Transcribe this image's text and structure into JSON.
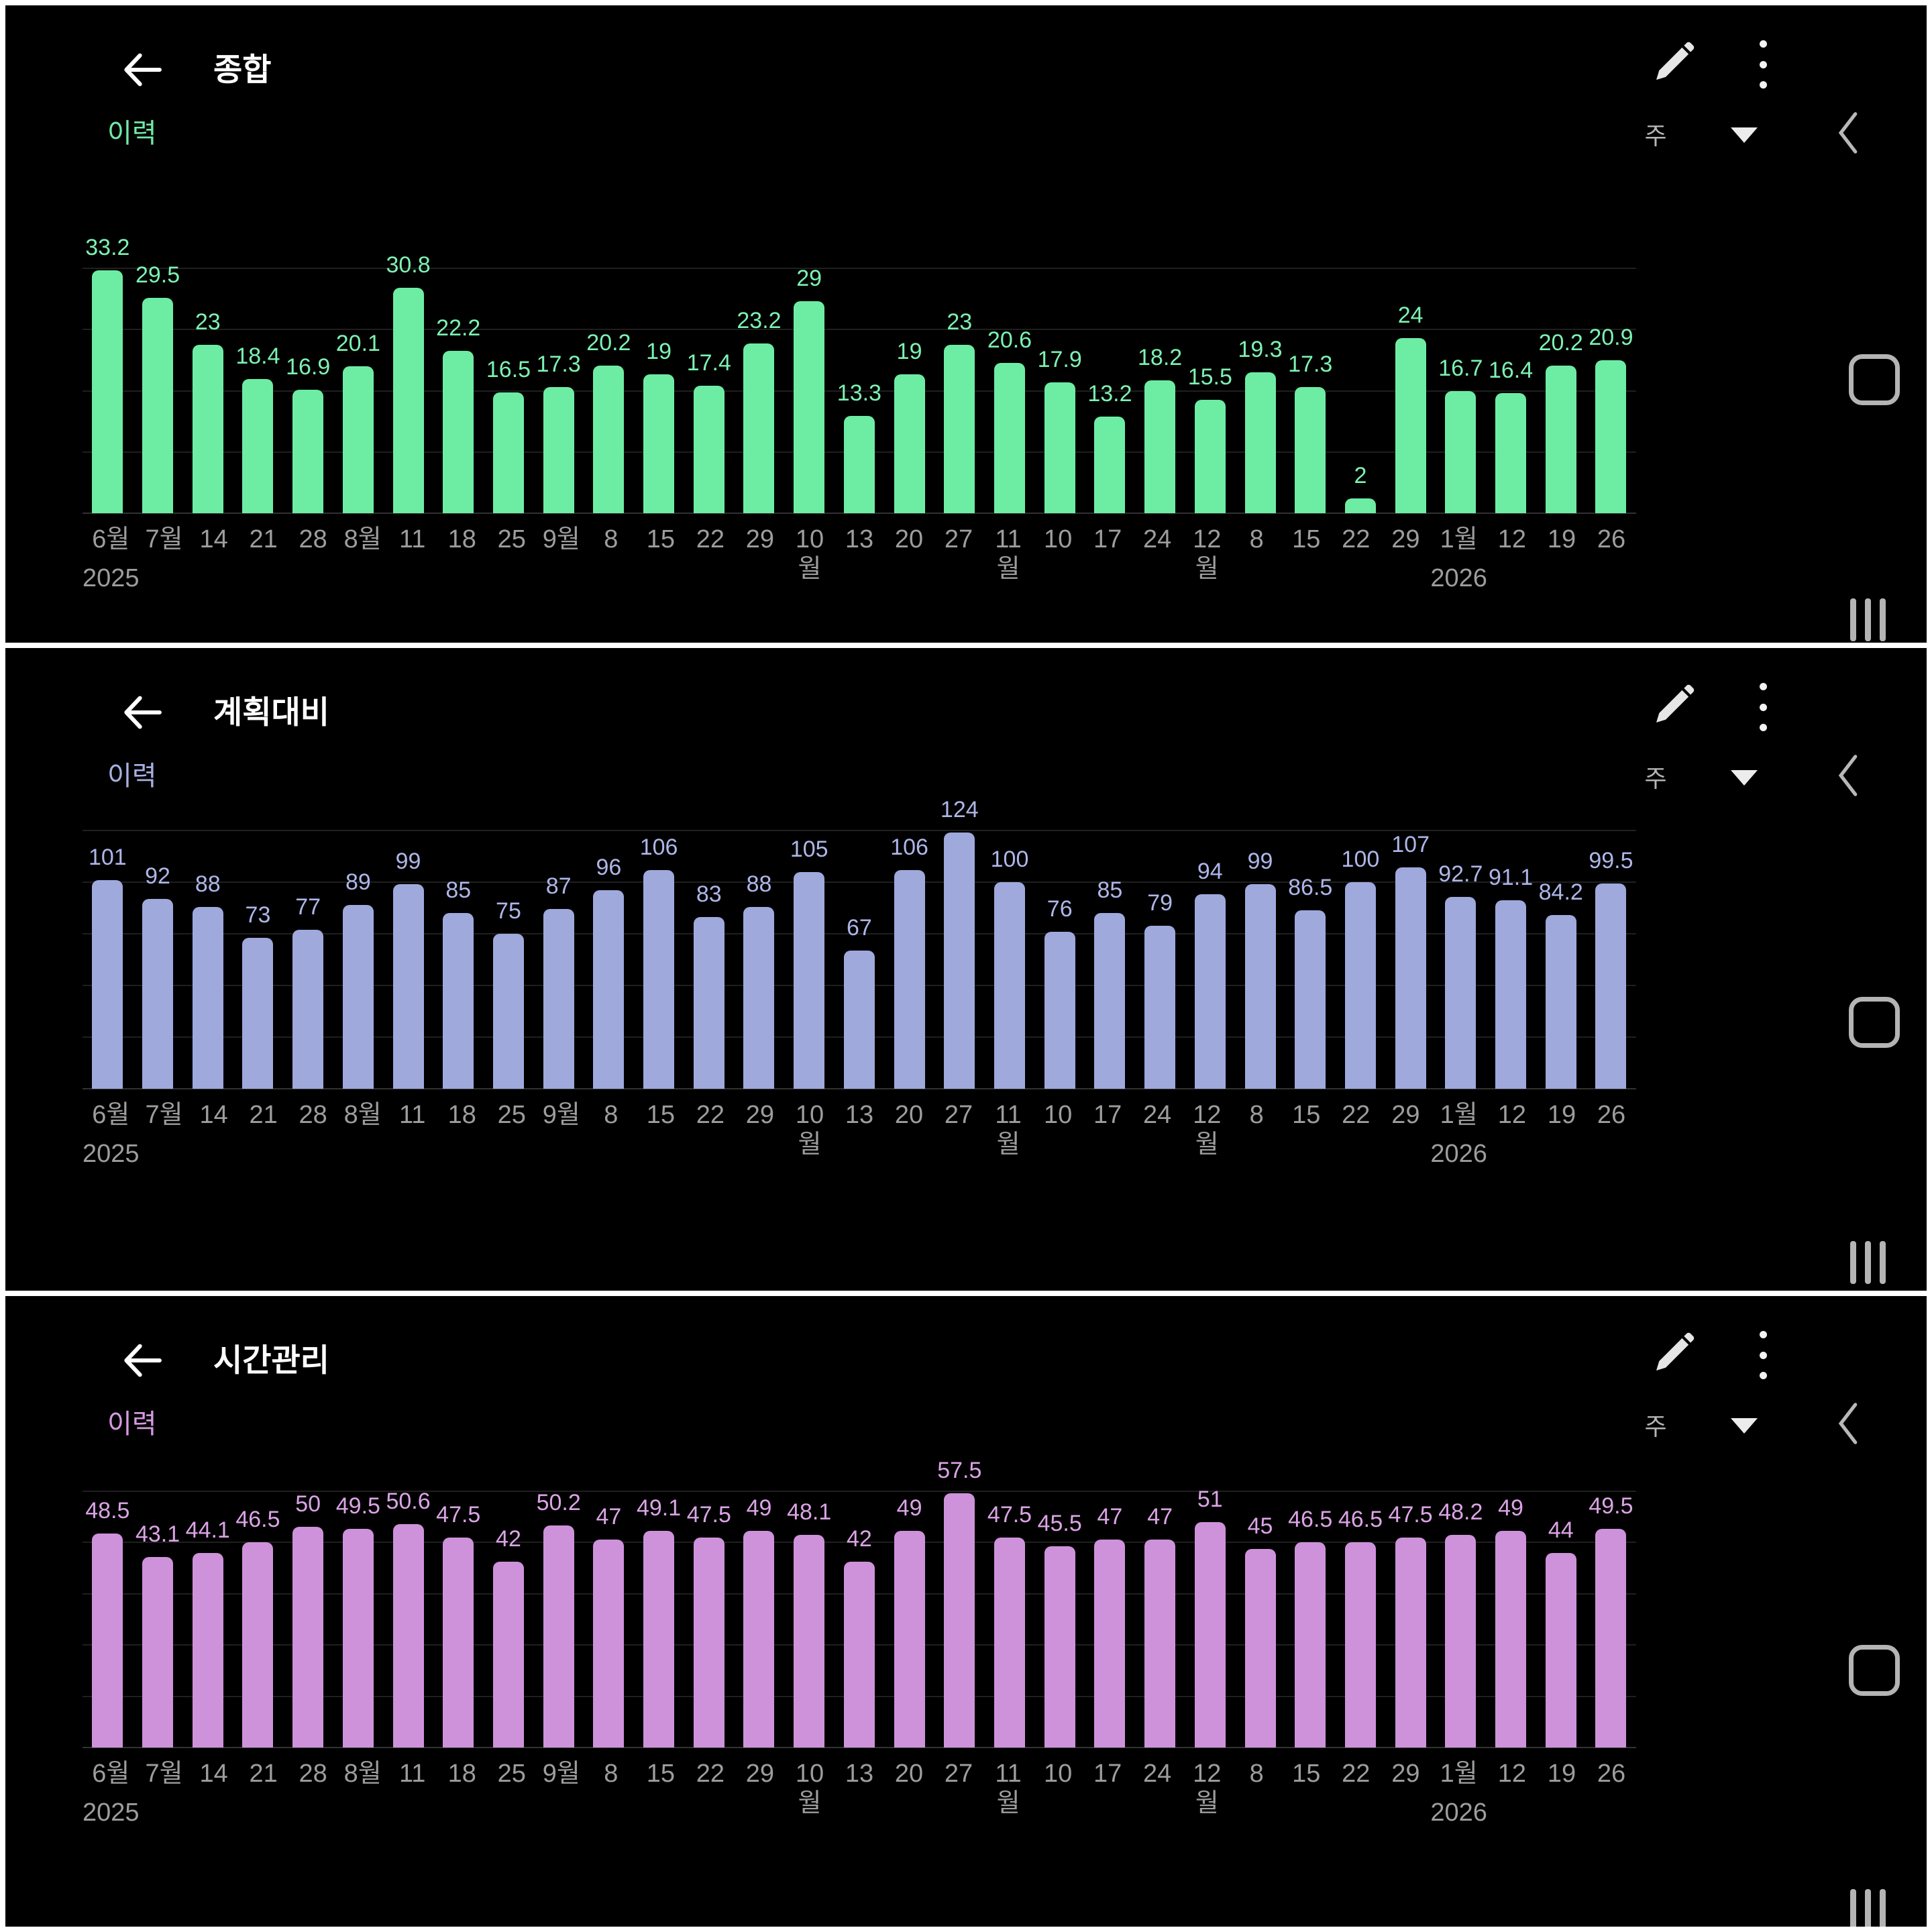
{
  "app": {
    "panels": [
      {
        "title": "종합",
        "history_label": "이력",
        "period_label": "주",
        "bar_color": "#6deda4",
        "value_label_color": "#7df2b2",
        "history_color": "#6fe9a7"
      },
      {
        "title": "계획대비",
        "history_label": "이력",
        "period_label": "주",
        "bar_color": "#9fa9dc",
        "value_label_color": "#aeb6e8",
        "history_color": "#a7b0e0"
      },
      {
        "title": "시간관리",
        "history_label": "이력",
        "period_label": "주",
        "bar_color": "#ce92da",
        "value_label_color": "#dba4e6",
        "history_color": "#d49ae0"
      }
    ],
    "icons": {
      "header_back": "arrow-left-icon",
      "edit": "pencil-icon",
      "more": "kebab-menu-icon",
      "period_dropdown": "triangle-down-icon",
      "android_back": "back-chevron-icon",
      "android_home": "home-square-icon",
      "android_recents": "recents-bars-icon"
    }
  },
  "chart_data": [
    {
      "type": "bar",
      "title": "종합",
      "xlabel": "",
      "ylabel": "",
      "legend": "none",
      "grid": "horizontal",
      "grid_divisions": 4,
      "ylim": [
        0,
        33.5
      ],
      "categories": [
        "6월",
        "7월",
        "14",
        "21",
        "28",
        "8월",
        "11",
        "18",
        "25",
        "9월",
        "8",
        "15",
        "22",
        "29",
        "10월",
        "13",
        "20",
        "27",
        "11월",
        "10",
        "17",
        "24",
        "12월",
        "8",
        "15",
        "22",
        "29",
        "1월",
        "12",
        "19",
        "26"
      ],
      "year_labels": {
        "0": "2025",
        "27": "2026"
      },
      "values": [
        33.2,
        29.5,
        23,
        18.4,
        16.9,
        20.1,
        30.8,
        22.2,
        16.5,
        17.3,
        20.2,
        19,
        17.4,
        23.2,
        29,
        13.3,
        19,
        23,
        20.6,
        17.9,
        13.2,
        18.2,
        15.5,
        19.3,
        17.3,
        2,
        24,
        16.7,
        16.4,
        20.2,
        20.9
      ],
      "value_labels": [
        "33.2",
        "29.5",
        "23",
        "18.4",
        "16.9",
        "20.1",
        "30.8",
        "22.2",
        "16.5",
        "17.3",
        "20.2",
        "19",
        "17.4",
        "23.2",
        "29",
        "13.3",
        "19",
        "23",
        "20.6",
        "17.9",
        "13.2",
        "18.2",
        "15.5",
        "19.3",
        "17.3",
        "2",
        "24",
        "16.7",
        "16.4",
        "20.2",
        "20.9"
      ]
    },
    {
      "type": "bar",
      "title": "계획대비",
      "xlabel": "",
      "ylabel": "",
      "legend": "none",
      "grid": "horizontal",
      "grid_divisions": 5,
      "ylim": [
        0,
        125
      ],
      "categories": [
        "6월",
        "7월",
        "14",
        "21",
        "28",
        "8월",
        "11",
        "18",
        "25",
        "9월",
        "8",
        "15",
        "22",
        "29",
        "10월",
        "13",
        "20",
        "27",
        "11월",
        "10",
        "17",
        "24",
        "12월",
        "8",
        "15",
        "22",
        "29",
        "1월",
        "12",
        "19",
        "26"
      ],
      "year_labels": {
        "0": "2025",
        "27": "2026"
      },
      "values": [
        101,
        92,
        88,
        73,
        77,
        89,
        99,
        85,
        75,
        87,
        96,
        106,
        83,
        88,
        105,
        67,
        106,
        124,
        100,
        76,
        85,
        79,
        94,
        99,
        86.5,
        100,
        107,
        92.7,
        91.1,
        84.2,
        99.5
      ],
      "value_labels": [
        "101",
        "92",
        "88",
        "73",
        "77",
        "89",
        "99",
        "85",
        "75",
        "87",
        "96",
        "106",
        "83",
        "88",
        "105",
        "67",
        "106",
        "124",
        "100",
        "76",
        "85",
        "79",
        "94",
        "99",
        "86.5",
        "100",
        "107",
        "92.7",
        "91.1",
        "84.2",
        "99.5"
      ]
    },
    {
      "type": "bar",
      "title": "시간관리",
      "xlabel": "",
      "ylabel": "",
      "legend": "none",
      "grid": "horizontal",
      "grid_divisions": 5,
      "ylim": [
        0,
        58
      ],
      "categories": [
        "6월",
        "7월",
        "14",
        "21",
        "28",
        "8월",
        "11",
        "18",
        "25",
        "9월",
        "8",
        "15",
        "22",
        "29",
        "10월",
        "13",
        "20",
        "27",
        "11월",
        "10",
        "17",
        "24",
        "12월",
        "8",
        "15",
        "22",
        "29",
        "1월",
        "12",
        "19",
        "26"
      ],
      "year_labels": {
        "0": "2025",
        "27": "2026"
      },
      "values": [
        48.5,
        43.1,
        44.1,
        46.5,
        50,
        49.5,
        50.6,
        47.5,
        42,
        50.2,
        47,
        49.1,
        47.5,
        49,
        48.1,
        42,
        49,
        57.5,
        47.5,
        45.5,
        47,
        47,
        51,
        45,
        46.5,
        46.5,
        47.5,
        48.2,
        49,
        44,
        49.5
      ],
      "value_labels": [
        "48.5",
        "43.1",
        "44.1",
        "46.5",
        "50",
        "49.5",
        "50.6",
        "47.5",
        "42",
        "50.2",
        "47",
        "49.1",
        "47.5",
        "49",
        "48.1",
        "42",
        "49",
        "57.5",
        "47.5",
        "45.5",
        "47",
        "47",
        "51",
        "45",
        "46.5",
        "46.5",
        "47.5",
        "48.2",
        "49",
        "44",
        "49.5"
      ]
    }
  ]
}
